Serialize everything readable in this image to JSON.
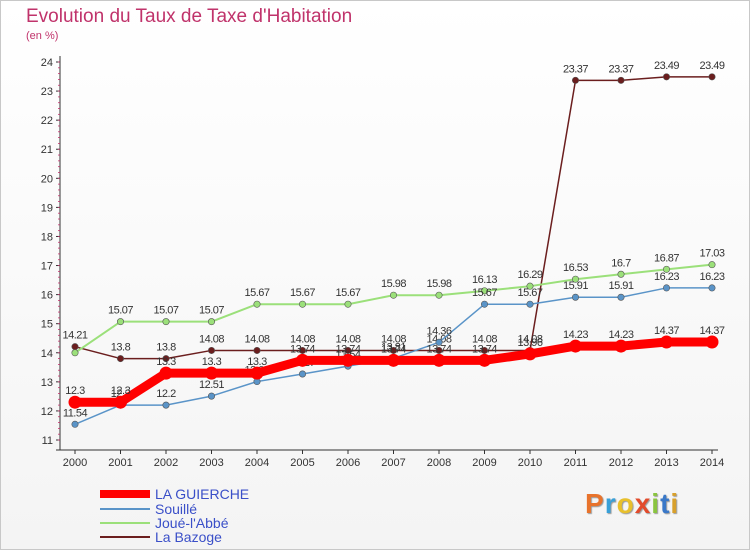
{
  "title": "Evolution du Taux de Taxe d'Habitation",
  "subtitle": "(en %)",
  "logo": {
    "text": "Proxiti",
    "colors": [
      "#e8732c",
      "#39a0d8",
      "#e8c02c",
      "#e24b2c",
      "#8ac43f",
      "#3a78c8",
      "#d8a02c"
    ]
  },
  "chart_data": {
    "type": "line",
    "x": [
      "2000",
      "2001",
      "2002",
      "2003",
      "2004",
      "2005",
      "2006",
      "2007",
      "2008",
      "2009",
      "2010",
      "2011",
      "2012",
      "2013",
      "2014"
    ],
    "ylim": [
      11,
      24
    ],
    "yticks": [
      "11",
      "12",
      "13",
      "14",
      "15",
      "16",
      "17",
      "18",
      "19",
      "20",
      "21",
      "22",
      "23",
      "24"
    ],
    "grid": false,
    "legend_position": "bottom-left",
    "series": [
      {
        "name": "La Bazoge",
        "color": "#6b1e1e",
        "width": 1.5,
        "values": [
          14.21,
          13.8,
          13.8,
          14.08,
          14.08,
          14.08,
          14.08,
          14.08,
          14.08,
          14.08,
          14.08,
          23.37,
          23.37,
          23.49,
          23.49
        ],
        "labels": [
          "14.21",
          "13.8",
          "13.8",
          "14.08",
          "14.08",
          "14.08",
          "14.08",
          "14.08",
          "14.08",
          "14.08",
          "14.08",
          "23.37",
          "23.37",
          "23.49",
          "23.49"
        ]
      },
      {
        "name": "Joué-l'Abbé",
        "color": "#9be07a",
        "width": 2,
        "values": [
          14.0,
          15.07,
          15.07,
          15.07,
          15.67,
          15.67,
          15.67,
          15.98,
          15.98,
          16.13,
          16.29,
          16.53,
          16.7,
          16.87,
          17.03
        ],
        "labels": [
          "",
          "15.07",
          "15.07",
          "15.07",
          "15.67",
          "15.67",
          "15.67",
          "15.98",
          "15.98",
          "16.13",
          "16.29",
          "16.53",
          "16.7",
          "16.87",
          "17.03"
        ]
      },
      {
        "name": "Souillé",
        "color": "#5a94c8",
        "width": 1.5,
        "values": [
          11.54,
          12.2,
          12.2,
          12.51,
          13.01,
          13.27,
          13.54,
          13.81,
          14.36,
          15.67,
          15.67,
          15.91,
          15.91,
          16.23,
          16.23
        ],
        "labels": [
          "11.54",
          "12.2",
          "12.2",
          "12.51",
          "13.01",
          "13.27",
          "13.54",
          "13.81",
          "14.36",
          "15.67",
          "15.67",
          "15.91",
          "15.91",
          "16.23",
          "16.23"
        ]
      },
      {
        "name": "LA GUIERCHE",
        "color": "#ff0000",
        "width": 9,
        "values": [
          12.3,
          12.3,
          13.3,
          13.3,
          13.3,
          13.74,
          13.74,
          13.74,
          13.74,
          13.74,
          13.96,
          14.23,
          14.23,
          14.37,
          14.37
        ],
        "labels": [
          "12.3",
          "12.3",
          "13.3",
          "13.3",
          "13.3",
          "13.74",
          "13.74",
          "13.74",
          "13.74",
          "13.74",
          "13.96",
          "14.23",
          "14.23",
          "14.37",
          "14.37"
        ]
      }
    ]
  },
  "legend": [
    {
      "name": "LA GUIERCHE",
      "color": "#ff0000"
    },
    {
      "name": "Souillé",
      "color": "#5a94c8"
    },
    {
      "name": "Joué-l'Abbé",
      "color": "#9be07a"
    },
    {
      "name": "La Bazoge",
      "color": "#6b1e1e"
    }
  ]
}
